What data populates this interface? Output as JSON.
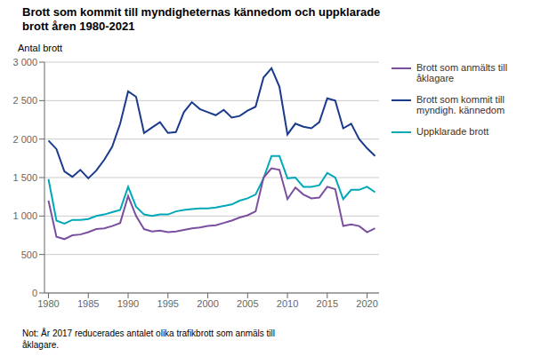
{
  "chart_data": {
    "type": "line",
    "title": "Brott som kommit till myndigheternas kännedom och uppklarade\nbrott åren 1980-2021",
    "y_label": "Antal brott",
    "annotations": [
      "Not: År 2017 reducerades antalet olika trafikbrott som anmäls till\nåklagare."
    ],
    "x": [
      1980,
      1981,
      1982,
      1983,
      1984,
      1985,
      1986,
      1987,
      1988,
      1989,
      1990,
      1991,
      1992,
      1993,
      1994,
      1995,
      1996,
      1997,
      1998,
      1999,
      2000,
      2001,
      2002,
      2003,
      2004,
      2005,
      2006,
      2007,
      2008,
      2009,
      2010,
      2011,
      2012,
      2013,
      2014,
      2015,
      2016,
      2017,
      2018,
      2019,
      2020,
      2021
    ],
    "series": [
      {
        "name": "Brott som kommit till\nmyndigh. kännedom",
        "color": "#1a3a8c",
        "values": [
          1980,
          1870,
          1580,
          1510,
          1600,
          1490,
          1590,
          1730,
          1900,
          2200,
          2620,
          2550,
          2080,
          2150,
          2220,
          2080,
          2090,
          2350,
          2480,
          2390,
          2350,
          2310,
          2380,
          2280,
          2300,
          2370,
          2420,
          2800,
          2920,
          2680,
          2060,
          2200,
          2160,
          2140,
          2220,
          2530,
          2500,
          2140,
          2200,
          2000,
          1880,
          1780
        ]
      },
      {
        "name": "Uppklarade brott",
        "color": "#00a8b8",
        "values": [
          1480,
          940,
          900,
          950,
          950,
          960,
          1000,
          1020,
          1050,
          1080,
          1380,
          1120,
          1020,
          1000,
          1020,
          1020,
          1060,
          1080,
          1090,
          1100,
          1100,
          1110,
          1130,
          1150,
          1200,
          1230,
          1280,
          1490,
          1780,
          1780,
          1490,
          1500,
          1380,
          1380,
          1400,
          1560,
          1500,
          1220,
          1340,
          1340,
          1380,
          1310
        ]
      },
      {
        "name": "Brott som anmälts till\nåklagare",
        "color": "#7b4fa0",
        "values": [
          1200,
          730,
          700,
          750,
          760,
          790,
          830,
          840,
          870,
          910,
          1260,
          1000,
          830,
          800,
          810,
          790,
          800,
          820,
          840,
          850,
          870,
          880,
          910,
          940,
          980,
          1010,
          1060,
          1500,
          1620,
          1600,
          1220,
          1370,
          1280,
          1230,
          1240,
          1380,
          1350,
          870,
          890,
          870,
          790,
          840
        ]
      }
    ],
    "xlim": [
      1979.5,
      2021.5
    ],
    "xticks": [
      1980,
      1985,
      1990,
      1995,
      2000,
      2005,
      2010,
      2015,
      2020
    ],
    "ylim": [
      0,
      3000
    ],
    "yticks": [
      0,
      500,
      {
        "value": 1000,
        "label": "1 000"
      },
      {
        "value": 1500,
        "label": "1 500"
      },
      {
        "value": 2000,
        "label": "2 000"
      },
      {
        "value": 2500,
        "label": "2 500"
      },
      {
        "value": 3000,
        "label": "3 000"
      }
    ],
    "grid": "y",
    "legend": "right"
  }
}
